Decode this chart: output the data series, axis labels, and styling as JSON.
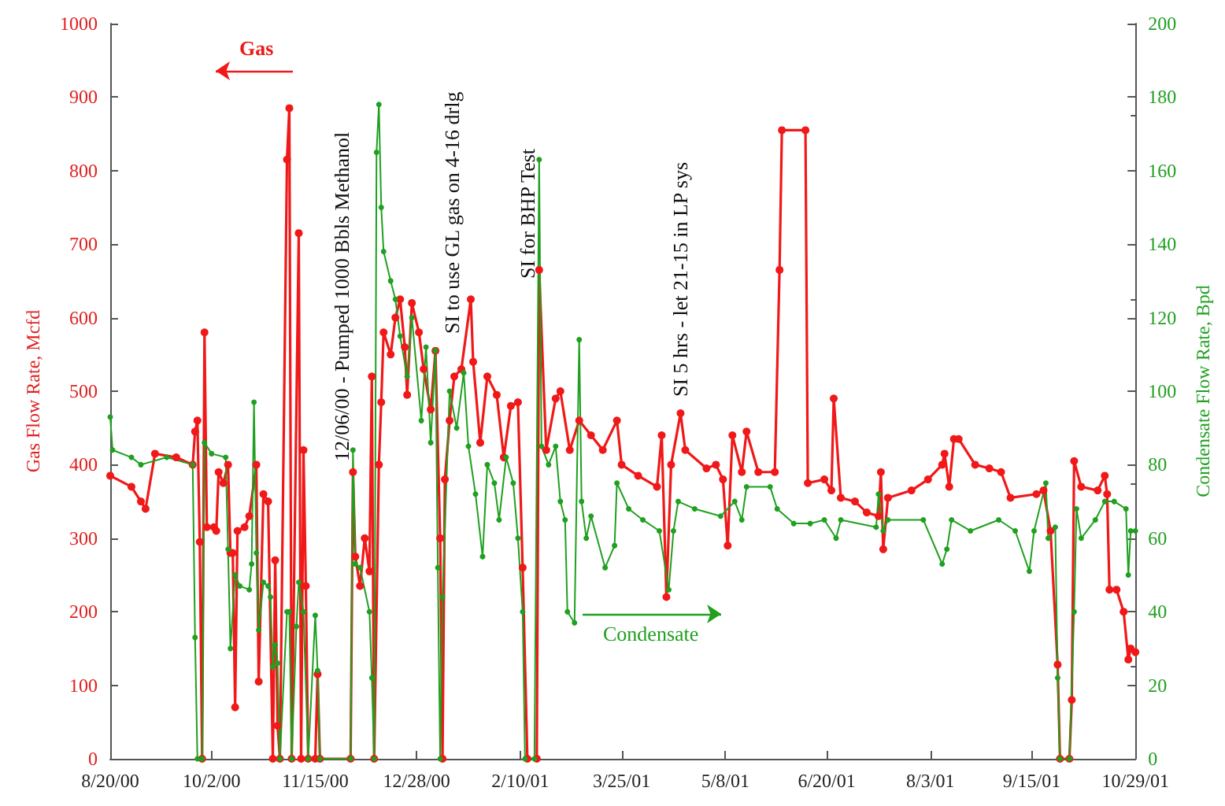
{
  "chart_data": {
    "type": "line",
    "ylabel": "Gas Flow Rate, Mcfd",
    "y2label": "Condensate Flow Rate, Bpd",
    "xlim": [
      "2000-08-20",
      "2001-10-29"
    ],
    "xticks": [
      {
        "value": "2000-08-20",
        "label": "8/20/00"
      },
      {
        "value": "2000-10-02",
        "label": "10/2/00"
      },
      {
        "value": "2000-11-15",
        "label": "11/15/00"
      },
      {
        "value": "2000-12-28",
        "label": "12/28/00"
      },
      {
        "value": "2001-02-10",
        "label": "2/10/01"
      },
      {
        "value": "2001-03-25",
        "label": "3/25/01"
      },
      {
        "value": "2001-05-08",
        "label": "5/8/01"
      },
      {
        "value": "2001-06-20",
        "label": "6/20/01"
      },
      {
        "value": "2001-08-03",
        "label": "8/3/01"
      },
      {
        "value": "2001-09-15",
        "label": "9/15/01"
      },
      {
        "value": "2001-10-29",
        "label": "10/29/01"
      }
    ],
    "ylim": [
      0,
      1000
    ],
    "yticks": [
      0,
      100,
      200,
      300,
      400,
      500,
      600,
      700,
      800,
      900,
      1000
    ],
    "y2lim": [
      0,
      200
    ],
    "y2ticks": [
      0,
      20,
      40,
      60,
      80,
      100,
      120,
      140,
      160,
      180,
      200
    ],
    "grid": false,
    "legend": "bottom",
    "marker": "circle",
    "line_style": "solid",
    "annotations": [
      "12/06/00 - Pumped 1000 Bbls Methanol",
      "SI to use GL gas on 4-16 drlg",
      "SI for BHP Test",
      "SI 5 hrs - let 21-15 in LP sys"
    ],
    "series": [
      {
        "name": "Gas",
        "color": "#f01818",
        "x": [
          "2000-08-20",
          "2000-08-29",
          "2000-09-02",
          "2000-09-04",
          "2000-09-08",
          "2000-09-17",
          "2000-09-24",
          "2000-09-25",
          "2000-09-26",
          "2000-09-27",
          "2000-09-28",
          "2000-09-29",
          "2000-09-30",
          "2000-10-03",
          "2000-10-04",
          "2000-10-05",
          "2000-10-07",
          "2000-10-09",
          "2000-10-10",
          "2000-10-11",
          "2000-10-12",
          "2000-10-13",
          "2000-10-16",
          "2000-10-18",
          "2000-10-21",
          "2000-10-22",
          "2000-10-24",
          "2000-10-26",
          "2000-10-28",
          "2000-10-29",
          "2000-10-30",
          "2000-10-31",
          "2000-11-03",
          "2000-11-04",
          "2000-11-05",
          "2000-11-08",
          "2000-11-09",
          "2000-11-10",
          "2000-11-11",
          "2000-11-12",
          "2000-11-15",
          "2000-11-16",
          "2000-11-17",
          "2000-11-30",
          "2000-12-01",
          "2000-12-02",
          "2000-12-04",
          "2000-12-06",
          "2000-12-08",
          "2000-12-09",
          "2000-12-10",
          "2000-12-12",
          "2000-12-13",
          "2000-12-14",
          "2000-12-17",
          "2000-12-19",
          "2000-12-21",
          "2000-12-23",
          "2000-12-24",
          "2000-12-26",
          "2000-12-29",
          "2000-12-31",
          "2001-01-03",
          "2001-01-05",
          "2001-01-07",
          "2001-01-08",
          "2001-01-09",
          "2001-01-11",
          "2001-01-13",
          "2001-01-16",
          "2001-01-20",
          "2001-01-21",
          "2001-01-24",
          "2001-01-27",
          "2001-01-31",
          "2001-02-03",
          "2001-02-06",
          "2001-02-09",
          "2001-02-11",
          "2001-02-13",
          "2001-02-17",
          "2001-02-18",
          "2001-02-21",
          "2001-02-25",
          "2001-02-27",
          "2001-03-03",
          "2001-03-07",
          "2001-03-12",
          "2001-03-17",
          "2001-03-23",
          "2001-03-25",
          "2001-04-01",
          "2001-04-09",
          "2001-04-11",
          "2001-04-13",
          "2001-04-15",
          "2001-04-19",
          "2001-04-21",
          "2001-04-30",
          "2001-05-04",
          "2001-05-07",
          "2001-05-09",
          "2001-05-11",
          "2001-05-15",
          "2001-05-17",
          "2001-05-22",
          "2001-05-29",
          "2001-05-31",
          "2001-06-01",
          "2001-06-11",
          "2001-06-12",
          "2001-06-19",
          "2001-06-22",
          "2001-06-23",
          "2001-06-26",
          "2001-07-02",
          "2001-07-07",
          "2001-07-12",
          "2001-07-13",
          "2001-07-14",
          "2001-07-16",
          "2001-07-26",
          "2001-08-02",
          "2001-08-08",
          "2001-08-09",
          "2001-08-11",
          "2001-08-13",
          "2001-08-15",
          "2001-08-22",
          "2001-08-28",
          "2001-09-02",
          "2001-09-06",
          "2001-09-17",
          "2001-09-20",
          "2001-09-23",
          "2001-09-26",
          "2001-09-27",
          "2001-10-01",
          "2001-10-02",
          "2001-10-03",
          "2001-10-06",
          "2001-10-13",
          "2001-10-16",
          "2001-10-17",
          "2001-10-18",
          "2001-10-21",
          "2001-10-24",
          "2001-10-26",
          "2001-10-27",
          "2001-10-29"
        ],
        "values": [
          385,
          370,
          350,
          340,
          415,
          410,
          400,
          445,
          460,
          295,
          0,
          580,
          315,
          315,
          310,
          390,
          375,
          400,
          280,
          280,
          70,
          310,
          315,
          330,
          400,
          105,
          360,
          350,
          0,
          270,
          45,
          0,
          815,
          885,
          0,
          715,
          0,
          420,
          235,
          0,
          0,
          115,
          0,
          0,
          390,
          275,
          235,
          300,
          255,
          520,
          0,
          400,
          485,
          580,
          550,
          600,
          625,
          560,
          495,
          620,
          580,
          530,
          475,
          555,
          300,
          0,
          380,
          460,
          520,
          530,
          625,
          540,
          430,
          520,
          495,
          410,
          480,
          485,
          260,
          0,
          0,
          665,
          420,
          490,
          500,
          420,
          460,
          440,
          420,
          460,
          400,
          385,
          370,
          440,
          220,
          400,
          470,
          420,
          395,
          400,
          380,
          290,
          440,
          390,
          445,
          390,
          390,
          665,
          855,
          855,
          375,
          380,
          365,
          490,
          355,
          350,
          335,
          330,
          390,
          285,
          355,
          365,
          380,
          400,
          415,
          370,
          435,
          435,
          400,
          395,
          390,
          355,
          360,
          365,
          310,
          128,
          0,
          0,
          80,
          405,
          370,
          365,
          385,
          360,
          230,
          230,
          200,
          135,
          150,
          145
        ]
      },
      {
        "name": "Condensate",
        "color": "#1fa01f",
        "axis": "y2",
        "x": [
          "2000-08-20",
          "2000-08-21",
          "2000-08-29",
          "2000-09-02",
          "2000-09-13",
          "2000-09-24",
          "2000-09-25",
          "2000-09-26",
          "2000-09-28",
          "2000-09-29",
          "2000-10-02",
          "2000-10-08",
          "2000-10-09",
          "2000-10-10",
          "2000-10-12",
          "2000-10-14",
          "2000-10-18",
          "2000-10-19",
          "2000-10-20",
          "2000-10-21",
          "2000-10-22",
          "2000-10-24",
          "2000-10-26",
          "2000-10-27",
          "2000-10-28",
          "2000-10-29",
          "2000-10-30",
          "2000-10-31",
          "2000-11-03",
          "2000-11-04",
          "2000-11-05",
          "2000-11-07",
          "2000-11-08",
          "2000-11-10",
          "2000-11-12",
          "2000-11-15",
          "2000-11-16",
          "2000-11-17",
          "2000-11-30",
          "2000-12-01",
          "2000-12-02",
          "2000-12-04",
          "2000-12-08",
          "2000-12-09",
          "2000-12-10",
          "2000-12-11",
          "2000-12-12",
          "2000-12-13",
          "2000-12-14",
          "2000-12-17",
          "2000-12-19",
          "2000-12-21",
          "2000-12-24",
          "2000-12-26",
          "2000-12-30",
          "2001-01-01",
          "2001-01-03",
          "2001-01-05",
          "2001-01-06",
          "2001-01-07",
          "2001-01-08",
          "2001-01-11",
          "2001-01-14",
          "2001-01-17",
          "2001-01-19",
          "2001-01-22",
          "2001-01-25",
          "2001-01-27",
          "2001-01-30",
          "2001-02-01",
          "2001-02-04",
          "2001-02-07",
          "2001-02-09",
          "2001-02-11",
          "2001-02-12",
          "2001-02-16",
          "2001-02-18",
          "2001-02-19",
          "2001-02-22",
          "2001-02-25",
          "2001-02-27",
          "2001-03-01",
          "2001-03-02",
          "2001-03-05",
          "2001-03-07",
          "2001-03-08",
          "2001-03-10",
          "2001-03-12",
          "2001-03-18",
          "2001-03-22",
          "2001-03-23",
          "2001-03-28",
          "2001-04-03",
          "2001-04-10",
          "2001-04-14",
          "2001-04-16",
          "2001-04-18",
          "2001-04-25",
          "2001-05-06",
          "2001-05-12",
          "2001-05-15",
          "2001-05-17",
          "2001-05-27",
          "2001-05-30",
          "2001-06-06",
          "2001-06-13",
          "2001-06-19",
          "2001-06-24",
          "2001-06-26",
          "2001-07-11",
          "2001-07-12",
          "2001-07-14",
          "2001-07-16",
          "2001-07-31",
          "2001-08-08",
          "2001-08-10",
          "2001-08-12",
          "2001-08-20",
          "2001-09-01",
          "2001-09-08",
          "2001-09-14",
          "2001-09-16",
          "2001-09-21",
          "2001-09-22",
          "2001-09-25",
          "2001-09-26",
          "2001-09-27",
          "2001-10-01",
          "2001-10-03",
          "2001-10-04",
          "2001-10-06",
          "2001-10-12",
          "2001-10-16",
          "2001-10-20",
          "2001-10-25",
          "2001-10-26",
          "2001-10-27",
          "2001-10-29"
        ],
        "values": [
          93,
          84,
          82,
          80,
          82,
          80,
          33,
          0,
          0,
          86,
          83,
          82,
          57,
          30,
          50,
          47,
          46,
          53,
          97,
          56,
          35,
          48,
          47,
          44,
          25,
          31,
          26,
          0,
          40,
          40,
          0,
          36,
          48,
          40,
          0,
          39,
          24,
          0,
          0,
          84,
          53,
          52,
          40,
          22,
          0,
          165,
          178,
          150,
          138,
          130,
          125,
          115,
          104,
          120,
          92,
          112,
          86,
          111,
          52,
          0,
          44,
          100,
          90,
          105,
          85,
          72,
          55,
          80,
          75,
          65,
          82,
          75,
          60,
          40,
          0,
          0,
          163,
          85,
          80,
          85,
          70,
          65,
          40,
          37,
          114,
          70,
          60,
          66,
          52,
          58,
          75,
          68,
          65,
          62,
          46,
          62,
          70,
          68,
          66,
          70,
          65,
          74,
          74,
          68,
          64,
          64,
          65,
          60,
          65,
          63,
          72,
          62,
          65,
          65,
          53,
          57,
          65,
          62,
          65,
          62,
          51,
          62,
          75,
          60,
          63,
          22,
          0,
          0,
          40,
          68,
          60,
          65,
          70,
          70,
          68,
          50,
          62,
          62
        ]
      }
    ]
  }
}
